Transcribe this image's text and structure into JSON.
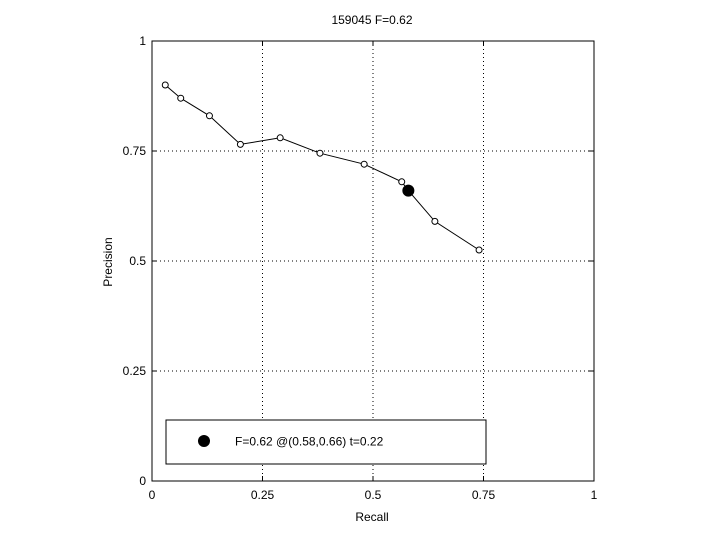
{
  "chart_data": {
    "type": "line",
    "title": "159045 F=0.62",
    "xlabel": "Recall",
    "ylabel": "Precision",
    "xlim": [
      0,
      1
    ],
    "ylim": [
      0,
      1
    ],
    "xticks": [
      0,
      0.25,
      0.5,
      0.75,
      1
    ],
    "yticks": [
      0,
      0.25,
      0.5,
      0.75,
      1
    ],
    "xtick_labels": [
      "0",
      "0.25",
      "0.5",
      "0.75",
      "1"
    ],
    "ytick_labels": [
      "0",
      "0.25",
      "0.5",
      "0.75",
      "1"
    ],
    "grid": true,
    "series": [
      {
        "x": [
          0.03,
          0.065,
          0.13,
          0.2,
          0.29,
          0.38,
          0.48,
          0.565,
          0.64,
          0.74
        ],
        "y": [
          0.9,
          0.87,
          0.83,
          0.765,
          0.78,
          0.745,
          0.72,
          0.68,
          0.59,
          0.525
        ]
      }
    ],
    "best_point": {
      "x": 0.58,
      "y": 0.66
    },
    "legend": {
      "position": "bottom-left",
      "label": "F=0.62 @(0.58,0.66) t=0.22"
    }
  }
}
